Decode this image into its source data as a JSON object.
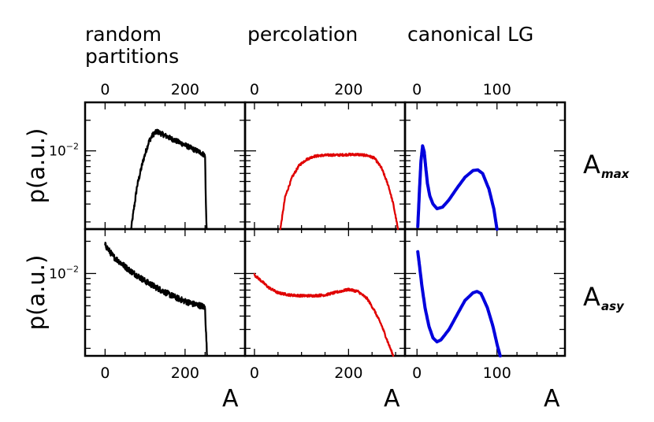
{
  "chart_data": {
    "type": "line",
    "y_scale": "log",
    "ylabel": "p(a.u.)",
    "ytick": {
      "base": "10",
      "exp": "−2",
      "value": 0.01
    },
    "columns": [
      {
        "id": "random",
        "title_lines": [
          "random",
          "partitions"
        ],
        "xlim": [
          -50,
          350
        ],
        "xticks": [
          0,
          200
        ],
        "color": "#000000"
      },
      {
        "id": "percolation",
        "title_lines": [
          "percolation"
        ],
        "xlim": [
          -20,
          320
        ],
        "xticks": [
          0,
          200
        ],
        "color": "#e00000"
      },
      {
        "id": "lg",
        "title_lines": [
          "canonical LG"
        ],
        "xlim": [
          -15,
          185
        ],
        "xticks": [
          0,
          100
        ],
        "color": "#0000dd"
      }
    ],
    "rows": [
      {
        "id": "amax",
        "label_main": "A",
        "label_sub": "max",
        "ylim": [
          0.0017,
          0.03
        ]
      },
      {
        "id": "aasy",
        "label_main": "A",
        "label_sub": "asy",
        "ylim": [
          0.0017,
          0.026
        ]
      }
    ],
    "xlabel": "A",
    "panels": [
      {
        "row": "amax",
        "col": "random",
        "noise": 0.09,
        "x": [
          65,
          80,
          95,
          110,
          120,
          130,
          140,
          160,
          180,
          200,
          220,
          240,
          250,
          252,
          254
        ],
        "y": [
          0.0017,
          0.0045,
          0.008,
          0.0125,
          0.0145,
          0.0155,
          0.0148,
          0.0135,
          0.0124,
          0.0114,
          0.0104,
          0.0096,
          0.009,
          0.003,
          0.0017
        ]
      },
      {
        "row": "amax",
        "col": "percolation",
        "noise": 0.04,
        "x": [
          55,
          65,
          80,
          95,
          110,
          125,
          140,
          160,
          180,
          200,
          220,
          240,
          255,
          270,
          285,
          295,
          305
        ],
        "y": [
          0.0017,
          0.0035,
          0.0055,
          0.0072,
          0.0082,
          0.0088,
          0.009,
          0.0091,
          0.0091,
          0.0092,
          0.0092,
          0.009,
          0.0085,
          0.0068,
          0.0045,
          0.003,
          0.0017
        ]
      },
      {
        "row": "amax",
        "col": "lg",
        "noise": 0,
        "x": [
          1,
          3,
          5,
          7,
          9,
          11,
          13,
          16,
          20,
          25,
          32,
          40,
          50,
          60,
          70,
          76,
          82,
          90,
          96,
          100
        ],
        "y": [
          0.0018,
          0.004,
          0.008,
          0.0112,
          0.0098,
          0.0068,
          0.0048,
          0.0036,
          0.003,
          0.0027,
          0.0028,
          0.0033,
          0.0043,
          0.0055,
          0.0064,
          0.0065,
          0.006,
          0.0042,
          0.0027,
          0.0017
        ]
      },
      {
        "row": "aasy",
        "col": "random",
        "noise": 0.1,
        "x": [
          0,
          20,
          40,
          60,
          80,
          100,
          120,
          140,
          160,
          180,
          200,
          220,
          240,
          250,
          252,
          255
        ],
        "y": [
          0.0185,
          0.0145,
          0.0125,
          0.0108,
          0.0096,
          0.0085,
          0.0077,
          0.007,
          0.0064,
          0.0059,
          0.0055,
          0.0052,
          0.005,
          0.0048,
          0.003,
          0.0017
        ]
      },
      {
        "row": "aasy",
        "col": "percolation",
        "noise": 0.04,
        "x": [
          0,
          15,
          30,
          50,
          75,
          100,
          125,
          150,
          175,
          200,
          220,
          240,
          255,
          270,
          285,
          295
        ],
        "y": [
          0.0097,
          0.0085,
          0.0074,
          0.0066,
          0.0063,
          0.0062,
          0.0062,
          0.0063,
          0.0067,
          0.0071,
          0.0068,
          0.0058,
          0.0045,
          0.0033,
          0.0022,
          0.0017
        ]
      },
      {
        "row": "aasy",
        "col": "lg",
        "noise": 0,
        "x": [
          1,
          3,
          6,
          10,
          15,
          20,
          25,
          30,
          40,
          50,
          60,
          70,
          75,
          80,
          88,
          95,
          100,
          104
        ],
        "y": [
          0.016,
          0.012,
          0.0078,
          0.0048,
          0.0032,
          0.0025,
          0.0023,
          0.0024,
          0.003,
          0.0041,
          0.0056,
          0.0066,
          0.0068,
          0.0065,
          0.0048,
          0.0032,
          0.0022,
          0.0017
        ]
      }
    ]
  }
}
